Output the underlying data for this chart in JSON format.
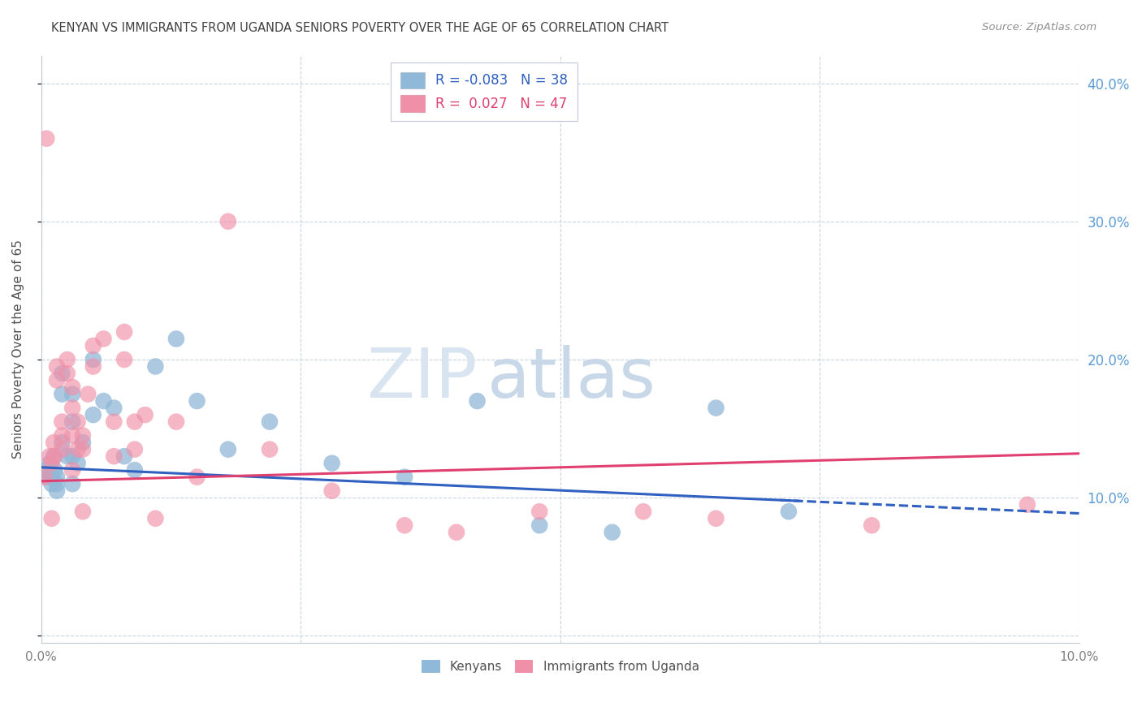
{
  "title": "KENYAN VS IMMIGRANTS FROM UGANDA SENIORS POVERTY OVER THE AGE OF 65 CORRELATION CHART",
  "source": "Source: ZipAtlas.com",
  "ylabel": "Seniors Poverty Over the Age of 65",
  "xlim": [
    0.0,
    0.1
  ],
  "ylim": [
    -0.005,
    0.42
  ],
  "right_yticks": [
    0.0,
    0.1,
    0.2,
    0.3,
    0.4
  ],
  "right_yticklabels": [
    "",
    "10.0%",
    "20.0%",
    "30.0%",
    "40.0%"
  ],
  "xtick_positions": [
    0.0,
    0.025,
    0.05,
    0.075,
    0.1
  ],
  "kenyan_x": [
    0.0005,
    0.0005,
    0.0008,
    0.001,
    0.001,
    0.0012,
    0.0013,
    0.0015,
    0.0015,
    0.0015,
    0.002,
    0.002,
    0.002,
    0.0025,
    0.003,
    0.003,
    0.003,
    0.003,
    0.0035,
    0.004,
    0.005,
    0.005,
    0.006,
    0.007,
    0.008,
    0.009,
    0.011,
    0.013,
    0.015,
    0.018,
    0.022,
    0.028,
    0.035,
    0.042,
    0.048,
    0.055,
    0.065,
    0.072
  ],
  "kenyan_y": [
    0.12,
    0.115,
    0.125,
    0.115,
    0.11,
    0.13,
    0.12,
    0.115,
    0.11,
    0.105,
    0.19,
    0.175,
    0.14,
    0.13,
    0.175,
    0.155,
    0.13,
    0.11,
    0.125,
    0.14,
    0.2,
    0.16,
    0.17,
    0.165,
    0.13,
    0.12,
    0.195,
    0.215,
    0.17,
    0.135,
    0.155,
    0.125,
    0.115,
    0.17,
    0.08,
    0.075,
    0.165,
    0.09
  ],
  "uganda_x": [
    0.0003,
    0.0005,
    0.0008,
    0.001,
    0.001,
    0.0012,
    0.0013,
    0.0015,
    0.0015,
    0.002,
    0.002,
    0.002,
    0.0025,
    0.0025,
    0.003,
    0.003,
    0.003,
    0.003,
    0.0035,
    0.0035,
    0.004,
    0.004,
    0.004,
    0.0045,
    0.005,
    0.005,
    0.006,
    0.007,
    0.007,
    0.008,
    0.008,
    0.009,
    0.009,
    0.01,
    0.011,
    0.013,
    0.015,
    0.018,
    0.022,
    0.028,
    0.035,
    0.04,
    0.048,
    0.058,
    0.065,
    0.08,
    0.095
  ],
  "uganda_y": [
    0.115,
    0.36,
    0.13,
    0.125,
    0.085,
    0.14,
    0.13,
    0.195,
    0.185,
    0.155,
    0.145,
    0.135,
    0.2,
    0.19,
    0.18,
    0.165,
    0.145,
    0.12,
    0.155,
    0.135,
    0.145,
    0.135,
    0.09,
    0.175,
    0.21,
    0.195,
    0.215,
    0.155,
    0.13,
    0.22,
    0.2,
    0.155,
    0.135,
    0.16,
    0.085,
    0.155,
    0.115,
    0.3,
    0.135,
    0.105,
    0.08,
    0.075,
    0.09,
    0.09,
    0.085,
    0.08,
    0.095
  ],
  "blue_color": "#90b8d8",
  "pink_color": "#f090a8",
  "blue_line_color": "#3060c0",
  "pink_line_color": "#e04070",
  "background_color": "#ffffff",
  "grid_color": "#c8d4e0",
  "title_color": "#404040",
  "right_axis_color": "#5b9bd5",
  "watermark_zip_color": "#d8e4f0",
  "watermark_atlas_color": "#c8d8e8"
}
